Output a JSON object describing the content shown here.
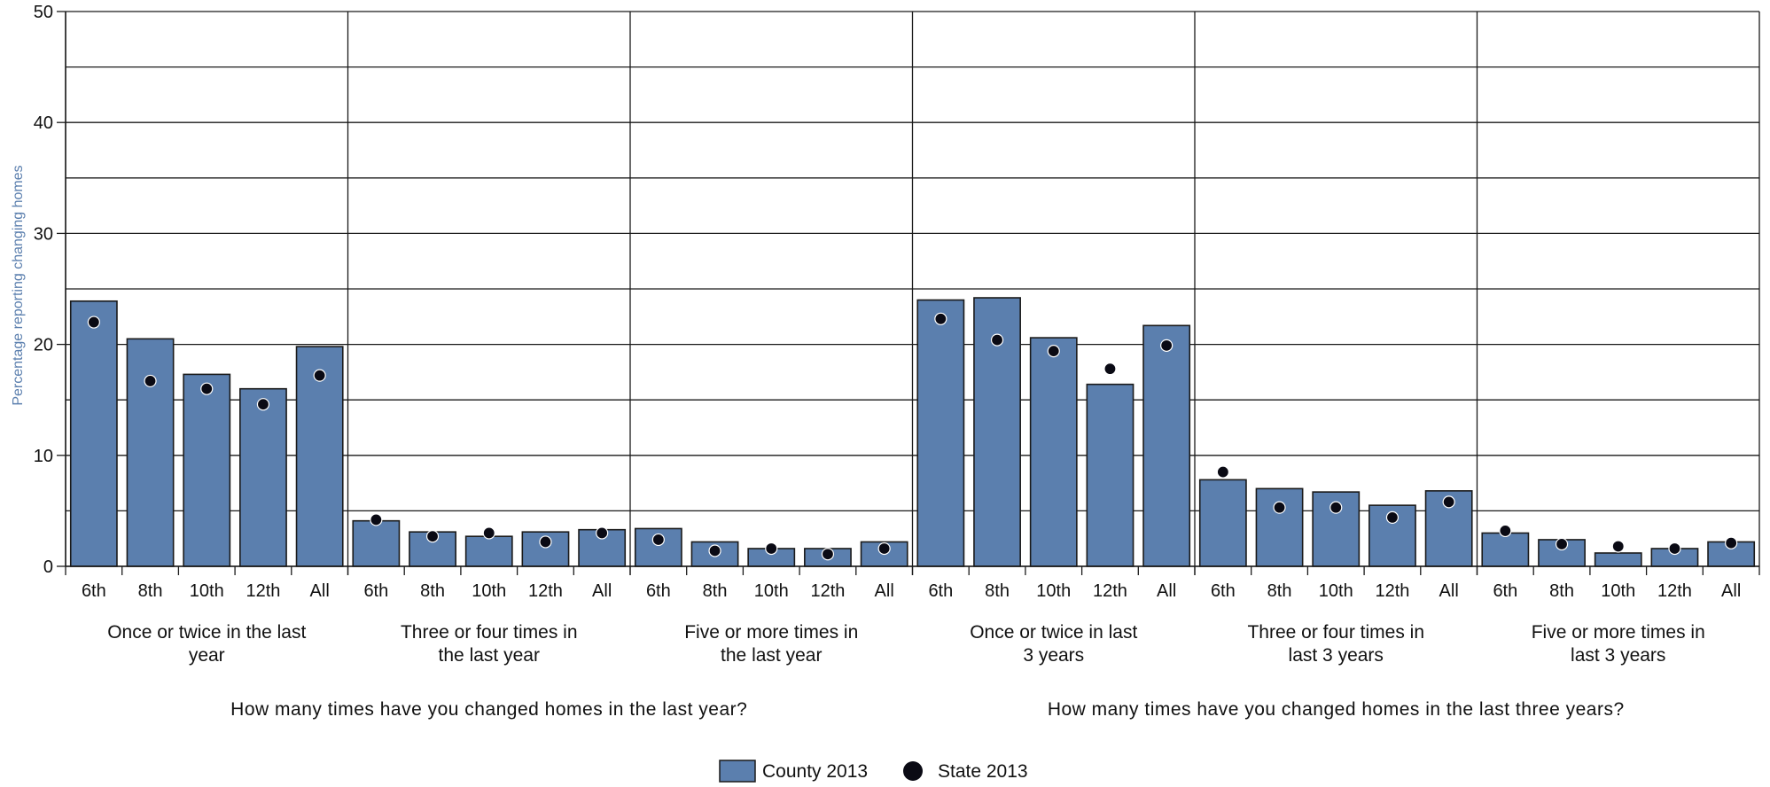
{
  "chart_data": {
    "type": "bar",
    "ylabel": "Percentage reporting changing homes",
    "ylim": [
      0,
      50
    ],
    "yticks": [
      0,
      10,
      20,
      30,
      40,
      50
    ],
    "grid": true,
    "legend_position": "bottom-center",
    "colors": {
      "bar": "#5b7fae",
      "bar_stroke": "#1a1a1a",
      "dot": "#0a0a14",
      "grid": "#1a1a1a",
      "ylabel": "#5b7fae"
    },
    "categories": [
      "6th",
      "8th",
      "10th",
      "12th",
      "All"
    ],
    "super_groups": [
      {
        "label": "How many times have you changed homes in the last year?",
        "groups": [
          0,
          1,
          2
        ]
      },
      {
        "label": "How many times have you changed homes in the last three years?",
        "groups": [
          3,
          4,
          5
        ]
      }
    ],
    "groups": [
      {
        "label_lines": [
          "Once or twice in the last",
          "year"
        ],
        "county": [
          23.9,
          20.5,
          17.3,
          16.0,
          19.8
        ],
        "state": [
          22.0,
          16.7,
          16.0,
          14.6,
          17.2
        ]
      },
      {
        "label_lines": [
          "Three or four times in",
          "the last year"
        ],
        "county": [
          4.1,
          3.1,
          2.7,
          3.1,
          3.3
        ],
        "state": [
          4.2,
          2.7,
          3.0,
          2.2,
          3.0
        ]
      },
      {
        "label_lines": [
          "Five or more times in",
          "the last year"
        ],
        "county": [
          3.4,
          2.2,
          1.6,
          1.6,
          2.2
        ],
        "state": [
          2.4,
          1.4,
          1.6,
          1.1,
          1.6
        ]
      },
      {
        "label_lines": [
          "Once or twice in last",
          "3 years"
        ],
        "county": [
          24.0,
          24.2,
          20.6,
          16.4,
          21.7
        ],
        "state": [
          22.3,
          20.4,
          19.4,
          17.8,
          19.9
        ]
      },
      {
        "label_lines": [
          "Three or four times in",
          "last 3 years"
        ],
        "county": [
          7.8,
          7.0,
          6.7,
          5.5,
          6.8
        ],
        "state": [
          8.5,
          5.3,
          5.3,
          4.4,
          5.8
        ]
      },
      {
        "label_lines": [
          "Five or more times in",
          "last 3 years"
        ],
        "county": [
          3.0,
          2.4,
          1.2,
          1.6,
          2.2
        ],
        "state": [
          3.2,
          2.0,
          1.8,
          1.6,
          2.1
        ]
      }
    ],
    "series": [
      {
        "name": "County 2013",
        "kind": "bar"
      },
      {
        "name": "State 2013",
        "kind": "dot"
      }
    ]
  }
}
